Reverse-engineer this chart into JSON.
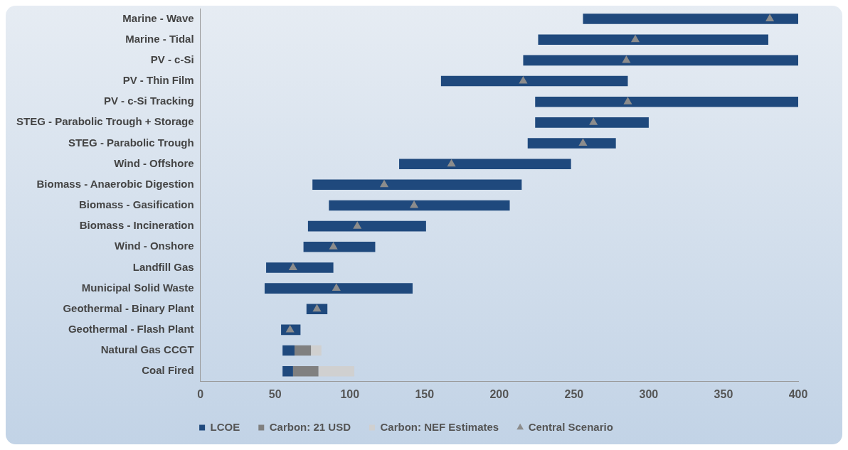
{
  "chart_data": {
    "type": "bar",
    "orientation": "horizontal",
    "categories": [
      "Marine - Wave",
      "Marine - Tidal",
      "PV - c-Si",
      "PV - Thin Film",
      "PV - c-Si Tracking",
      "STEG - Parabolic Trough + Storage",
      "STEG - Parabolic Trough",
      "Wind - Offshore",
      "Biomass - Anaerobic Digestion",
      "Biomass - Gasification",
      "Biomass - Incineration",
      "Wind - Onshore",
      "Landfill Gas",
      "Municipal Solid Waste",
      "Geothermal - Binary Plant",
      "Geothermal - Flash Plant",
      "Natural Gas CCGT",
      "Coal Fired"
    ],
    "series": [
      {
        "name": "LCOE",
        "color": "#1f497d",
        "base": [
          256,
          226,
          216,
          161,
          224,
          224,
          219,
          133,
          75,
          86,
          72,
          69,
          44,
          43,
          71,
          54,
          55,
          55
        ],
        "values": [
          144,
          154,
          184,
          125,
          176,
          76,
          59,
          115,
          140,
          121,
          79,
          48,
          45,
          99,
          14,
          13,
          8,
          7
        ]
      },
      {
        "name": "Carbon: 21 USD",
        "color": "#808080",
        "base": [
          null,
          null,
          null,
          null,
          null,
          null,
          null,
          null,
          null,
          null,
          null,
          null,
          null,
          null,
          null,
          null,
          63,
          62
        ],
        "values": [
          null,
          null,
          null,
          null,
          null,
          null,
          null,
          null,
          null,
          null,
          null,
          null,
          null,
          null,
          null,
          null,
          11,
          17
        ]
      },
      {
        "name": "Carbon: NEF Estimates",
        "color": "#d0d0d0",
        "base": [
          null,
          null,
          null,
          null,
          null,
          null,
          null,
          null,
          null,
          null,
          null,
          null,
          null,
          null,
          null,
          null,
          74,
          79
        ],
        "values": [
          null,
          null,
          null,
          null,
          null,
          null,
          null,
          null,
          null,
          null,
          null,
          null,
          null,
          null,
          null,
          null,
          7,
          24
        ]
      },
      {
        "name": "Central Scenario",
        "type": "scatter",
        "marker": "triangle",
        "color": "#8c8c8c",
        "values": [
          381,
          291,
          285,
          216,
          286,
          263,
          256,
          168,
          123,
          143,
          105,
          89,
          62,
          91,
          78,
          60,
          null,
          null
        ]
      }
    ],
    "xlim": [
      0,
      400
    ],
    "xticks": [
      0,
      50,
      100,
      150,
      200,
      250,
      300,
      350,
      400
    ],
    "grid": false,
    "legend": "bottom"
  }
}
